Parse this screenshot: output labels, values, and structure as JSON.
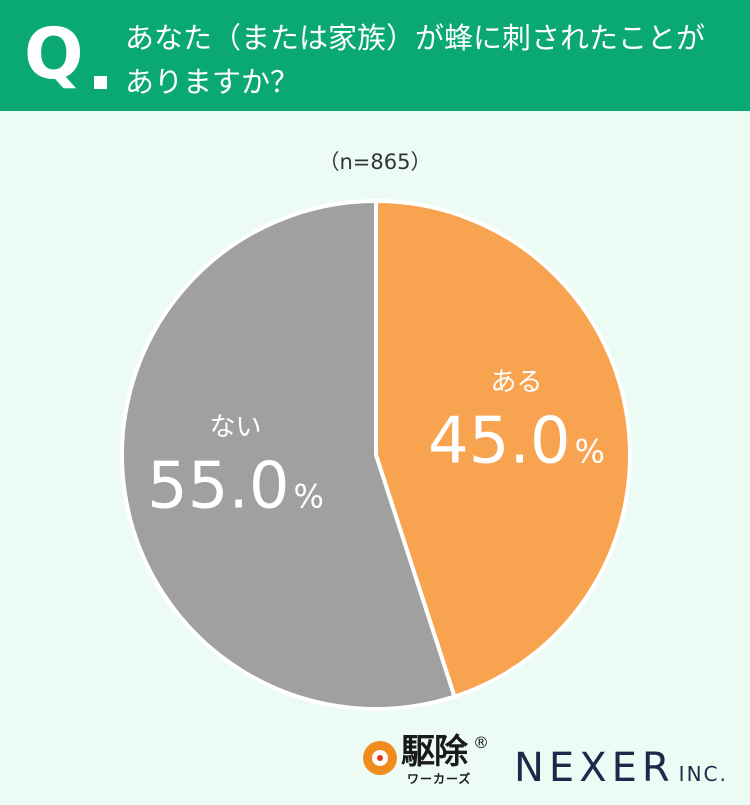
{
  "question": {
    "mark": "Q",
    "text_line1": "あなた（または家族）が蜂に刺されたことが",
    "text_line2": "ありますか？"
  },
  "sample_size": "（n=865）",
  "chart_data": {
    "type": "pie",
    "start": "top",
    "direction": "clockwise",
    "slices": [
      {
        "label": "ある",
        "value": 45.0,
        "display": "45.0",
        "unit": "%",
        "color": "#f7a350"
      },
      {
        "label": "ない",
        "value": 55.0,
        "display": "55.0",
        "unit": "%",
        "color": "#a0a0a0"
      }
    ]
  },
  "logos": {
    "kujo_main": "駆除",
    "kujo_reg": "®",
    "kujo_sub": "ワーカーズ",
    "nexer_main": "NEXER",
    "nexer_inc": "INC."
  }
}
